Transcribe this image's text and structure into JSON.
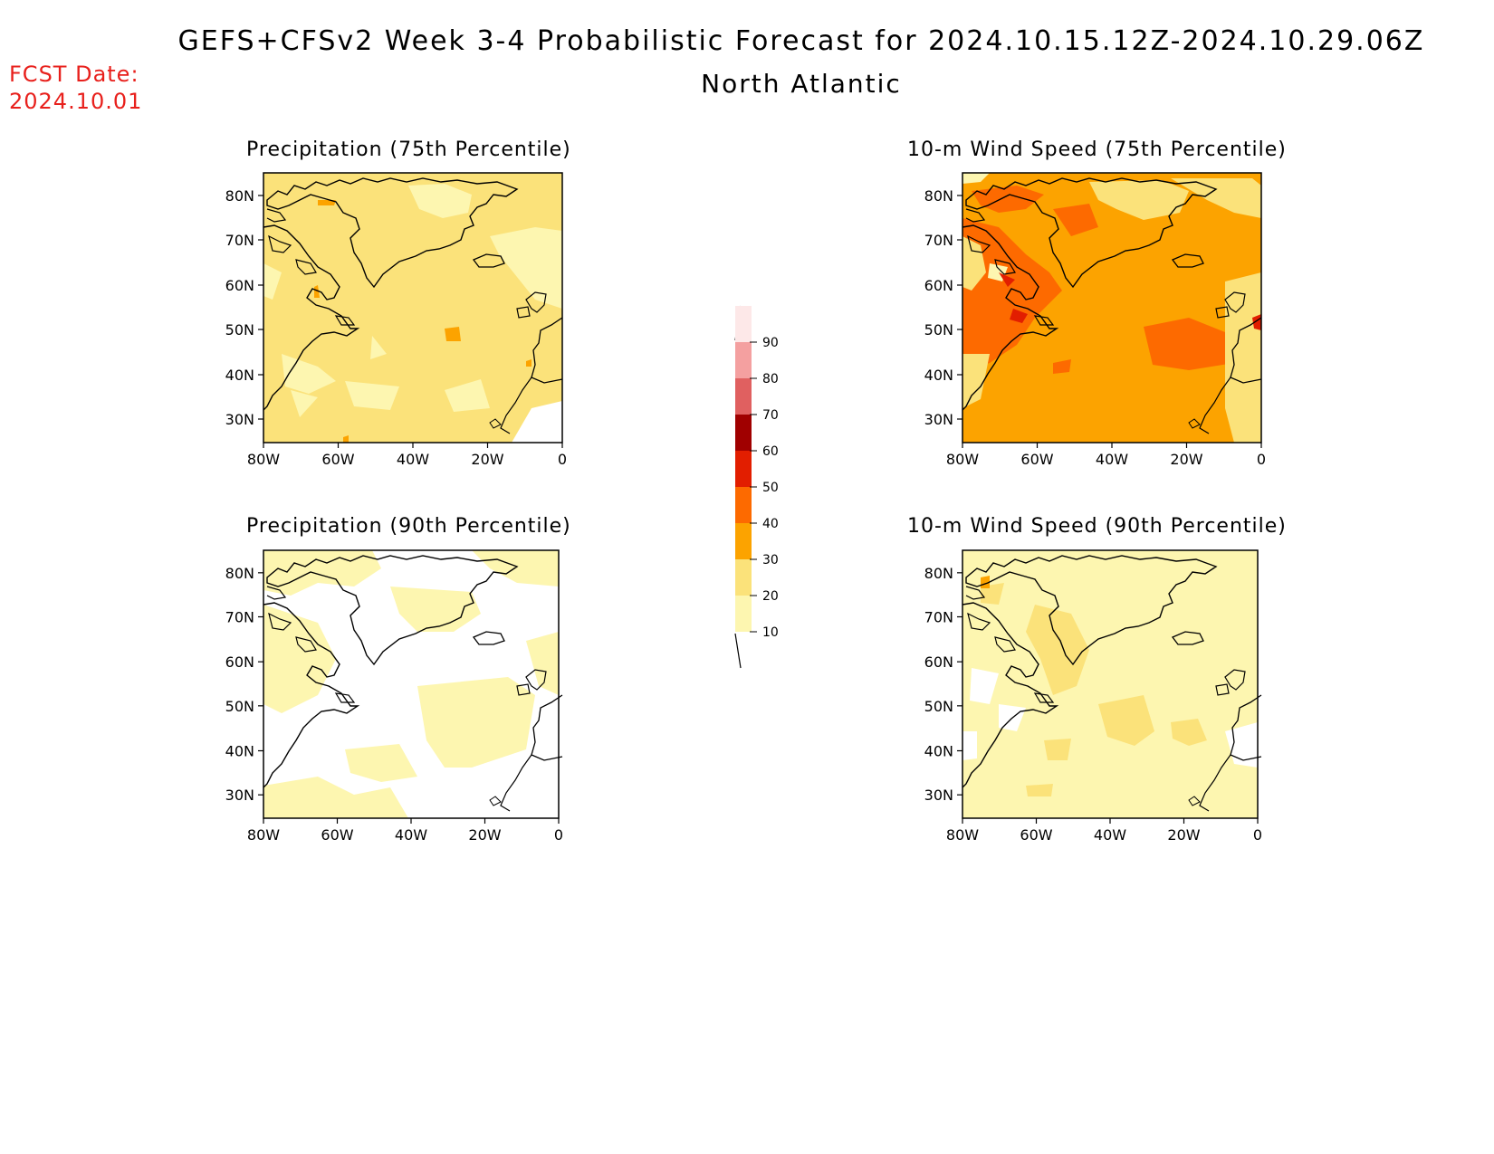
{
  "header": {
    "title": "GEFS+CFSv2 Week 3-4 Probabilistic Forecast for 2024.10.15.12Z-2024.10.29.06Z",
    "subtitle": "North Atlantic",
    "fcst_label": "FCST Date:",
    "fcst_date": "2024.10.01"
  },
  "axes": {
    "lat_ticks": [
      "80N",
      "70N",
      "60N",
      "50N",
      "40N",
      "30N"
    ],
    "lon_ticks": [
      "80W",
      "60W",
      "40W",
      "20W",
      "0"
    ]
  },
  "panels": [
    {
      "title": "Precipitation (75th Percentile)",
      "base_bin": "20-30",
      "dominant_color": "#fbe27a"
    },
    {
      "title": "10-m Wind Speed (75th Percentile)",
      "base_bin": "30-40",
      "dominant_color": "#fca300"
    },
    {
      "title": "Precipitation (90th Percentile)",
      "base_bin": "<10 and 10-20",
      "dominant_color": "#ffffff"
    },
    {
      "title": "10-m Wind Speed (90th Percentile)",
      "base_bin": "10-20",
      "dominant_color": "#fdf6b0"
    }
  ],
  "colorbar": {
    "levels": [
      "90",
      "80",
      "70",
      "60",
      "50",
      "40",
      "30",
      "20",
      "10"
    ],
    "colors": [
      "#fde8e8",
      "#f4a0a0",
      "#e06060",
      "#a00000",
      "#e21e00",
      "#fd6a00",
      "#fca300",
      "#fbe27a",
      "#fdf6b0"
    ]
  }
}
